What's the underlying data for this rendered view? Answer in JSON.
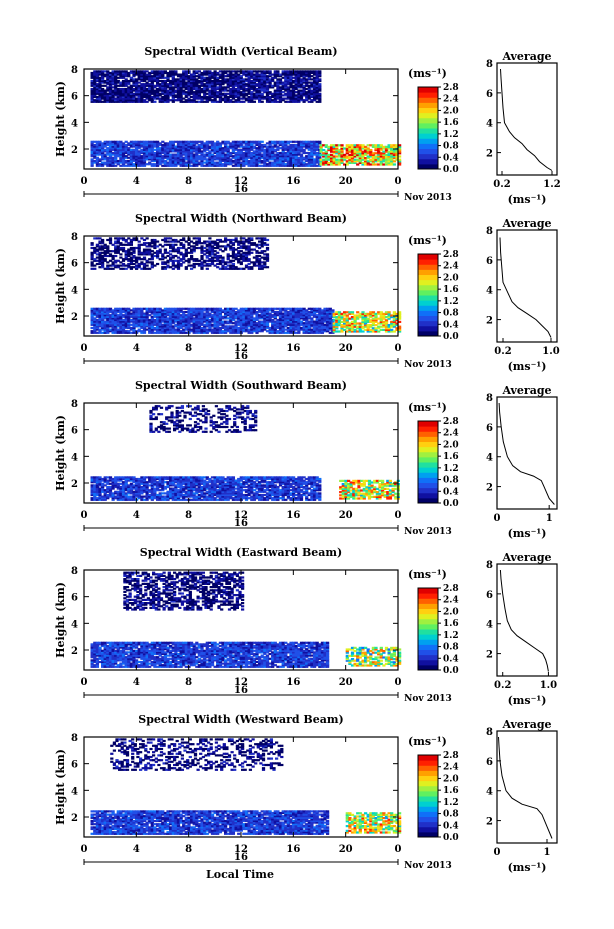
{
  "xlabel": "Local Time",
  "day_label": "16",
  "month_label": "Nov 2013",
  "colorbar_unit": "(ms⁻¹)",
  "colorbar_ticks": [
    "0.0",
    "0.4",
    "0.8",
    "1.2",
    "1.6",
    "2.0",
    "2.4",
    "2.8"
  ],
  "colormap": [
    "#000066",
    "#1010a0",
    "#2030c8",
    "#2050e8",
    "#1070f8",
    "#00a0f0",
    "#00d0d0",
    "#20e0a0",
    "#60f060",
    "#a0f040",
    "#e0f020",
    "#ffd010",
    "#ffa000",
    "#ff6000",
    "#ff2000",
    "#e00000"
  ],
  "chart_data": [
    {
      "type": "heatmap",
      "title": "Spectral Width (Vertical Beam)",
      "ylabel": "Height (km)",
      "xlim": [
        0,
        24
      ],
      "ylim": [
        0.5,
        8
      ],
      "xticks": [
        "0",
        "4",
        "8",
        "12",
        "16",
        "20",
        "0"
      ],
      "yticks": [
        "2",
        "4",
        "6",
        "8"
      ],
      "regions": [
        {
          "t0": 0.5,
          "t1": 18,
          "h0": 5.5,
          "h1": 7.8,
          "v": 0.15,
          "fill": 0.85
        },
        {
          "t0": 0.5,
          "t1": 18,
          "h0": 0.7,
          "h1": 2.6,
          "v": 0.5,
          "fill": 0.9
        },
        {
          "t0": 18,
          "t1": 24,
          "h0": 0.8,
          "h1": 2.3,
          "v": 2.0,
          "fill": 0.8
        }
      ],
      "avg": {
        "title": "Average",
        "xlabel": "(ms⁻¹)",
        "xticks": [
          "0.2",
          "1.2"
        ],
        "xtick_vals": [
          0.2,
          1.2
        ],
        "xlim": [
          0.1,
          1.3
        ],
        "yticks": [
          "2",
          "4",
          "6",
          "8"
        ],
        "profile": [
          [
            1.2,
            0.8
          ],
          [
            1.1,
            1.0
          ],
          [
            0.95,
            1.4
          ],
          [
            0.85,
            1.8
          ],
          [
            0.7,
            2.2
          ],
          [
            0.6,
            2.6
          ],
          [
            0.45,
            3.0
          ],
          [
            0.35,
            3.4
          ],
          [
            0.25,
            4.0
          ],
          [
            0.22,
            5.0
          ],
          [
            0.2,
            6.0
          ],
          [
            0.18,
            7.0
          ],
          [
            0.17,
            7.6
          ]
        ]
      }
    },
    {
      "type": "heatmap",
      "title": "Spectral Width (Northward Beam)",
      "ylabel": "Height (km)",
      "xlim": [
        0,
        24
      ],
      "ylim": [
        0.5,
        8
      ],
      "xticks": [
        "0",
        "4",
        "8",
        "12",
        "16",
        "20",
        "0"
      ],
      "yticks": [
        "2",
        "4",
        "6",
        "8"
      ],
      "regions": [
        {
          "t0": 0.5,
          "t1": 14,
          "h0": 5.5,
          "h1": 7.8,
          "v": 0.15,
          "fill": 0.55
        },
        {
          "t0": 0.5,
          "t1": 19,
          "h0": 0.7,
          "h1": 2.6,
          "v": 0.5,
          "fill": 0.9
        },
        {
          "t0": 19,
          "t1": 24,
          "h0": 0.8,
          "h1": 2.3,
          "v": 1.8,
          "fill": 0.75
        }
      ],
      "avg": {
        "title": "Average",
        "xlabel": "(ms⁻¹)",
        "xticks": [
          "0.2",
          "1.0"
        ],
        "xtick_vals": [
          0.2,
          1.0
        ],
        "xlim": [
          0.1,
          1.1
        ],
        "yticks": [
          "2",
          "4",
          "6",
          "8"
        ],
        "profile": [
          [
            1.0,
            0.8
          ],
          [
            0.95,
            1.2
          ],
          [
            0.85,
            1.6
          ],
          [
            0.75,
            2.0
          ],
          [
            0.6,
            2.4
          ],
          [
            0.45,
            2.8
          ],
          [
            0.35,
            3.2
          ],
          [
            0.28,
            3.8
          ],
          [
            0.2,
            4.5
          ],
          [
            0.18,
            5.5
          ],
          [
            0.16,
            6.5
          ],
          [
            0.15,
            7.5
          ]
        ]
      }
    },
    {
      "type": "heatmap",
      "title": "Spectral Width (Southward Beam)",
      "ylabel": "Height (km)",
      "xlim": [
        0,
        24
      ],
      "ylim": [
        0.5,
        8
      ],
      "xticks": [
        "0",
        "4",
        "8",
        "12",
        "16",
        "20",
        "0"
      ],
      "yticks": [
        "2",
        "4",
        "6",
        "8"
      ],
      "regions": [
        {
          "t0": 5,
          "t1": 13,
          "h0": 5.8,
          "h1": 7.8,
          "v": 0.15,
          "fill": 0.4
        },
        {
          "t0": 0.5,
          "t1": 18,
          "h0": 0.7,
          "h1": 2.4,
          "v": 0.5,
          "fill": 0.85
        },
        {
          "t0": 19.5,
          "t1": 24,
          "h0": 0.8,
          "h1": 2.2,
          "v": 1.8,
          "fill": 0.7
        }
      ],
      "avg": {
        "title": "Average",
        "xlabel": "(ms⁻¹)",
        "xticks": [
          "0",
          "1"
        ],
        "xtick_vals": [
          0,
          1
        ],
        "xlim": [
          0,
          1.15
        ],
        "yticks": [
          "2",
          "4",
          "6",
          "8"
        ],
        "profile": [
          [
            1.1,
            0.8
          ],
          [
            1.0,
            1.2
          ],
          [
            0.95,
            1.6
          ],
          [
            0.9,
            2.0
          ],
          [
            0.85,
            2.4
          ],
          [
            0.7,
            2.7
          ],
          [
            0.45,
            3.0
          ],
          [
            0.3,
            3.4
          ],
          [
            0.2,
            4.0
          ],
          [
            0.12,
            5.0
          ],
          [
            0.08,
            6.0
          ],
          [
            0.05,
            7.0
          ],
          [
            0.04,
            7.6
          ]
        ]
      }
    },
    {
      "type": "heatmap",
      "title": "Spectral Width (Eastward Beam)",
      "ylabel": "Height (km)",
      "xlim": [
        0,
        24
      ],
      "ylim": [
        0.5,
        8
      ],
      "xticks": [
        "0",
        "4",
        "8",
        "12",
        "16",
        "20",
        "0"
      ],
      "yticks": [
        "2",
        "4",
        "6",
        "8"
      ],
      "regions": [
        {
          "t0": 3,
          "t1": 12,
          "h0": 5.0,
          "h1": 7.8,
          "v": 0.15,
          "fill": 0.55
        },
        {
          "t0": 0.5,
          "t1": 18.5,
          "h0": 0.7,
          "h1": 2.6,
          "v": 0.5,
          "fill": 0.88
        },
        {
          "t0": 20,
          "t1": 24,
          "h0": 0.8,
          "h1": 2.2,
          "v": 1.6,
          "fill": 0.6
        }
      ],
      "avg": {
        "title": "Average",
        "xlabel": "(ms⁻¹)",
        "xticks": [
          "0.2",
          "1.0"
        ],
        "xtick_vals": [
          0.2,
          1.0
        ],
        "xlim": [
          0.1,
          1.15
        ],
        "yticks": [
          "2",
          "4",
          "6",
          "8"
        ],
        "profile": [
          [
            1.0,
            0.8
          ],
          [
            0.98,
            1.2
          ],
          [
            0.95,
            1.6
          ],
          [
            0.9,
            2.0
          ],
          [
            0.75,
            2.4
          ],
          [
            0.6,
            2.8
          ],
          [
            0.45,
            3.2
          ],
          [
            0.35,
            3.6
          ],
          [
            0.28,
            4.2
          ],
          [
            0.24,
            5.0
          ],
          [
            0.2,
            6.0
          ],
          [
            0.17,
            7.0
          ],
          [
            0.16,
            7.6
          ]
        ]
      }
    },
    {
      "type": "heatmap",
      "title": "Spectral Width (Westward Beam)",
      "ylabel": "Height (km)",
      "xlim": [
        0,
        24
      ],
      "ylim": [
        0.5,
        8
      ],
      "xticks": [
        "0",
        "4",
        "8",
        "12",
        "16",
        "20",
        "0"
      ],
      "yticks": [
        "2",
        "4",
        "6",
        "8"
      ],
      "regions": [
        {
          "t0": 2,
          "t1": 15,
          "h0": 5.5,
          "h1": 7.8,
          "v": 0.15,
          "fill": 0.35
        },
        {
          "t0": 0.5,
          "t1": 18.5,
          "h0": 0.7,
          "h1": 2.5,
          "v": 0.5,
          "fill": 0.88
        },
        {
          "t0": 20,
          "t1": 24,
          "h0": 0.8,
          "h1": 2.3,
          "v": 1.8,
          "fill": 0.7
        }
      ],
      "avg": {
        "title": "Average",
        "xlabel": "(ms⁻¹)",
        "xticks": [
          "0",
          "1"
        ],
        "xtick_vals": [
          0,
          1
        ],
        "xlim": [
          0,
          1.2
        ],
        "yticks": [
          "2",
          "4",
          "6",
          "8"
        ],
        "profile": [
          [
            1.1,
            0.8
          ],
          [
            1.05,
            1.2
          ],
          [
            1.0,
            1.6
          ],
          [
            0.95,
            2.0
          ],
          [
            0.9,
            2.4
          ],
          [
            0.8,
            2.8
          ],
          [
            0.5,
            3.1
          ],
          [
            0.3,
            3.5
          ],
          [
            0.18,
            4.0
          ],
          [
            0.1,
            5.0
          ],
          [
            0.06,
            6.0
          ],
          [
            0.04,
            7.0
          ],
          [
            0.03,
            7.6
          ]
        ]
      }
    }
  ]
}
